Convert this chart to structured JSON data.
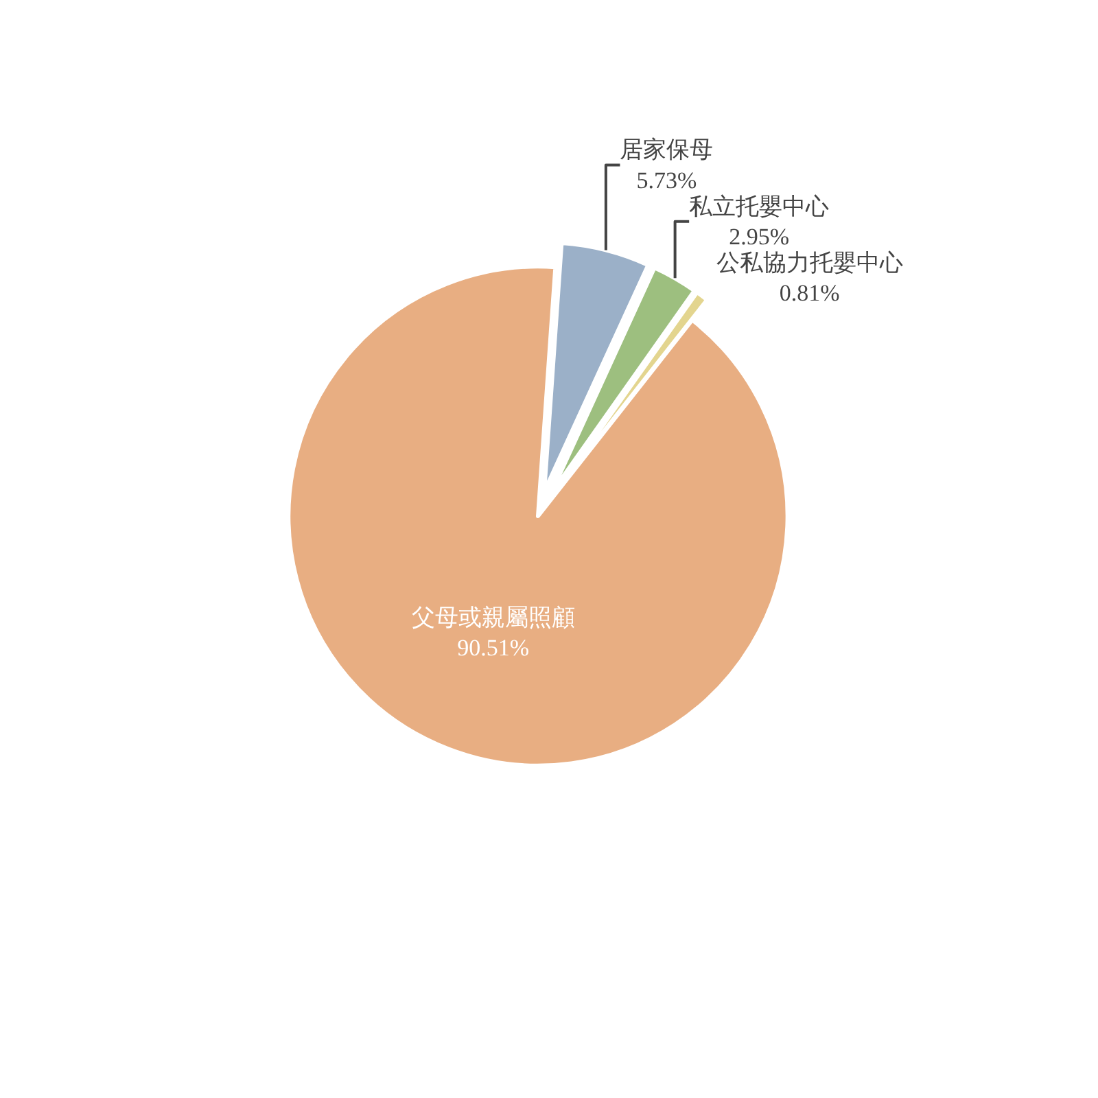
{
  "chart_data": {
    "type": "pie",
    "categories": [
      "居家保母",
      "私立托嬰中心",
      "公私協力托嬰中心",
      "父母或親屬照顧"
    ],
    "values": [
      5.73,
      2.95,
      0.81,
      90.51
    ],
    "value_labels": [
      "5.73%",
      "2.95%",
      "0.81%",
      "90.51%"
    ],
    "colors": [
      "#9bb0c8",
      "#9dbf7f",
      "#e3d58f",
      "#e8ae82"
    ],
    "legend": false
  }
}
